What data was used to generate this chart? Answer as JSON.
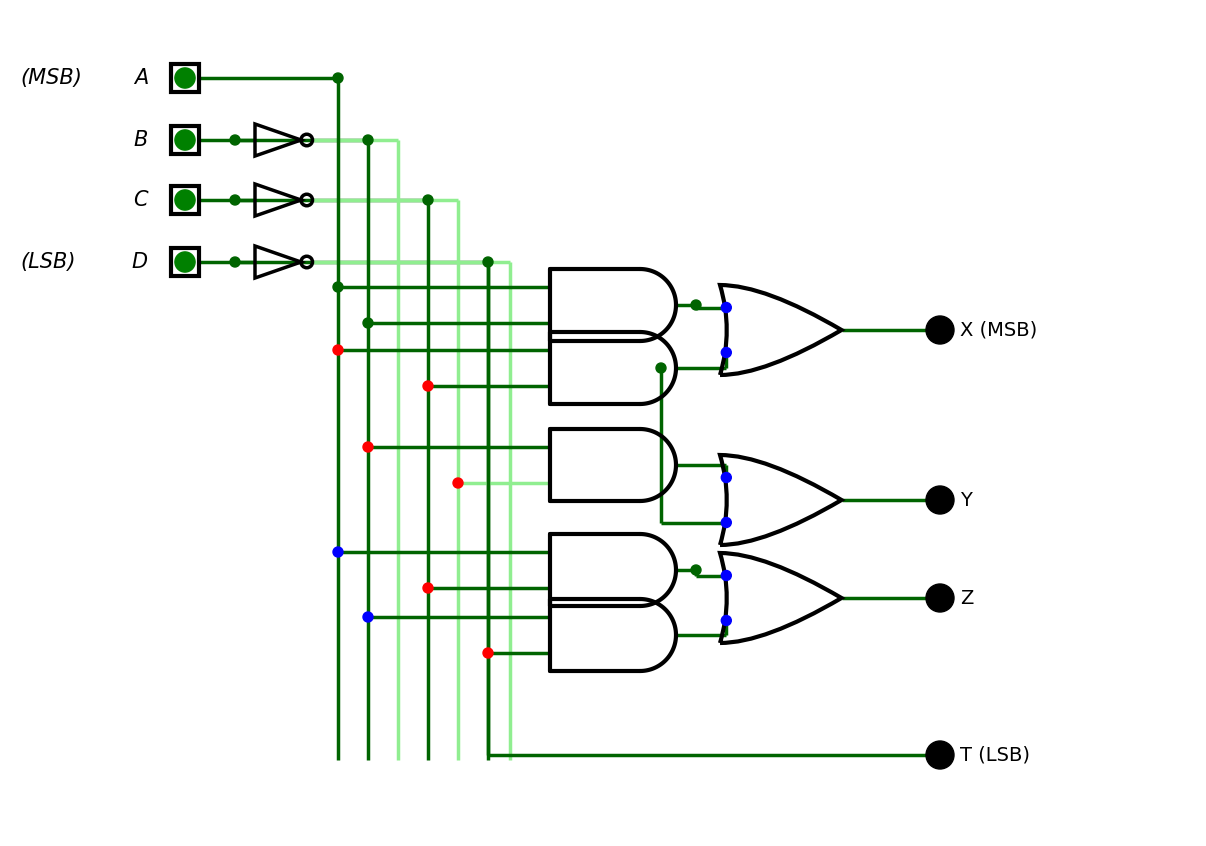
{
  "bg_color": "#ffffff",
  "dark_green": "#006400",
  "light_green": "#90EE90",
  "black": "#000000",
  "input_green": "#008000",
  "figsize": [
    12.06,
    8.46
  ],
  "inputs": [
    "A",
    "B",
    "C",
    "D"
  ],
  "left_labels": [
    "(MSB)",
    "",
    "",
    "(LSB)"
  ],
  "outputs": [
    "X (MSB)",
    "Y",
    "Z",
    "T (LSB)"
  ]
}
